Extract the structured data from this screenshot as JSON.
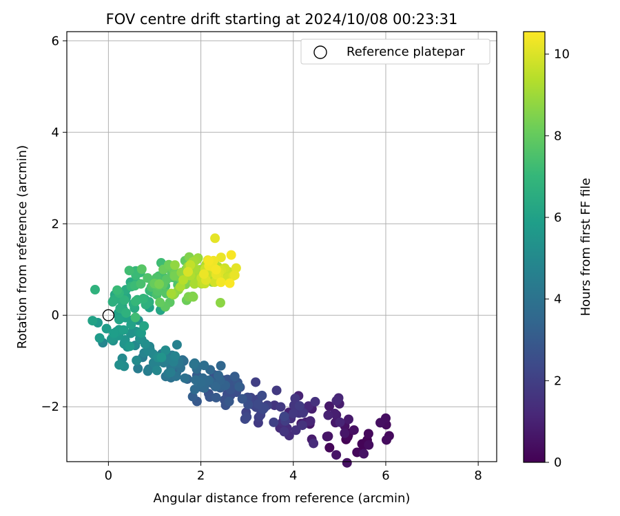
{
  "chart_data": {
    "type": "scatter",
    "title": "FOV centre drift starting at 2024/10/08 00:23:31",
    "xlabel": "Angular distance from reference (arcmin)",
    "ylabel": "Rotation from reference (arcmin)",
    "xlim": [
      -0.9,
      8.4
    ],
    "ylim": [
      -3.2,
      6.2
    ],
    "xticks": [
      0,
      2,
      4,
      6,
      8
    ],
    "yticks": [
      -2,
      0,
      2,
      4,
      6
    ],
    "xtick_labels": [
      "0",
      "2",
      "4",
      "6",
      "8"
    ],
    "ytick_labels": [
      "−2",
      "0",
      "2",
      "4",
      "6"
    ],
    "grid": true,
    "legend": {
      "placement": "top-right",
      "entries": [
        "Reference platepar"
      ]
    },
    "reference_point": {
      "label": "Reference platepar",
      "x": 0,
      "y": 0,
      "marker": "open-circle"
    },
    "colorbar": {
      "label": "Hours from first FF file",
      "colormap": "viridis",
      "range": [
        0,
        10.55
      ],
      "ticks": [
        0,
        2,
        4,
        6,
        8,
        10
      ],
      "tick_labels": [
        "0",
        "2",
        "4",
        "6",
        "8",
        "10"
      ]
    },
    "colormap_stops": [
      "#440154",
      "#482878",
      "#3e4989",
      "#31688e",
      "#26828e",
      "#1f9e89",
      "#35b779",
      "#6ece58",
      "#b5de2b",
      "#fde725"
    ],
    "series": [
      {
        "point_count": 380,
        "sample_points_hours_x_y": [
          [
            0.0,
            5.25,
            -2.95
          ],
          [
            0.3,
            5.8,
            -2.55
          ],
          [
            0.6,
            5.0,
            -2.6
          ],
          [
            1.0,
            4.6,
            -2.1
          ],
          [
            1.4,
            4.1,
            -2.35
          ],
          [
            1.8,
            3.6,
            -2.05
          ],
          [
            2.2,
            3.2,
            -2.1
          ],
          [
            2.6,
            2.7,
            -1.8
          ],
          [
            3.0,
            2.4,
            -1.55
          ],
          [
            3.4,
            2.1,
            -1.45
          ],
          [
            3.8,
            1.7,
            -1.2
          ],
          [
            4.2,
            1.4,
            -1.05
          ],
          [
            4.6,
            1.1,
            -0.95
          ],
          [
            5.0,
            0.7,
            -0.75
          ],
          [
            5.4,
            0.4,
            -0.55
          ],
          [
            5.8,
            0.2,
            -0.3
          ],
          [
            6.2,
            0.3,
            0.2
          ],
          [
            6.6,
            0.5,
            0.45
          ],
          [
            7.0,
            0.7,
            0.6
          ],
          [
            7.4,
            1.0,
            0.7
          ],
          [
            7.8,
            1.3,
            0.75
          ],
          [
            8.2,
            1.5,
            0.7
          ],
          [
            8.6,
            1.7,
            0.8
          ],
          [
            9.0,
            1.9,
            0.85
          ],
          [
            9.4,
            2.1,
            0.9
          ],
          [
            9.8,
            2.3,
            0.95
          ],
          [
            10.2,
            2.45,
            1.0
          ],
          [
            10.5,
            2.35,
            1.05
          ]
        ]
      }
    ]
  }
}
